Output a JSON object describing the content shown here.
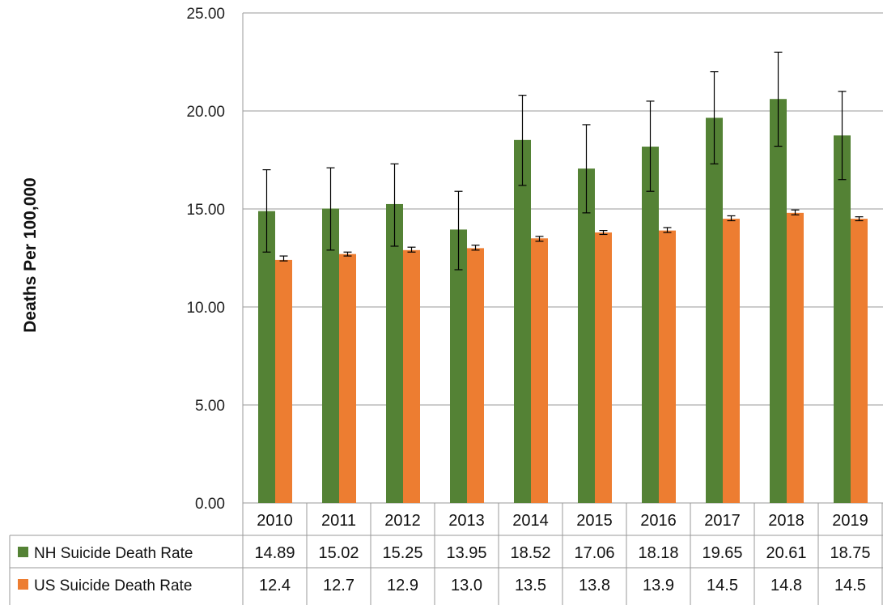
{
  "chart_data": {
    "type": "bar",
    "title": "",
    "xlabel": "",
    "ylabel": "Deaths Per 100,000",
    "ylim": [
      0,
      25
    ],
    "yticks": [
      "0.00",
      "5.00",
      "10.00",
      "15.00",
      "20.00",
      "25.00"
    ],
    "grid": true,
    "legend_placement": "data-table-left",
    "categories": [
      "2010",
      "2011",
      "2012",
      "2013",
      "2014",
      "2015",
      "2016",
      "2017",
      "2018",
      "2019"
    ],
    "series": [
      {
        "name": "NH Suicide Death Rate",
        "color": "#548235",
        "values": [
          14.89,
          15.02,
          15.25,
          13.95,
          18.52,
          17.06,
          18.18,
          19.65,
          20.61,
          18.75
        ],
        "labels": [
          "14.89",
          "15.02",
          "15.25",
          "13.95",
          "18.52",
          "17.06",
          "18.18",
          "19.65",
          "20.61",
          "18.75"
        ],
        "error_low": [
          12.8,
          12.9,
          13.1,
          11.9,
          16.2,
          14.8,
          15.9,
          17.3,
          18.2,
          16.5
        ],
        "error_high": [
          17.0,
          17.1,
          17.3,
          15.9,
          20.8,
          19.3,
          20.5,
          22.0,
          23.0,
          21.0
        ]
      },
      {
        "name": "US Suicide Death Rate",
        "color": "#ED7D31",
        "values": [
          12.4,
          12.7,
          12.9,
          13.0,
          13.5,
          13.8,
          13.9,
          14.5,
          14.8,
          14.5
        ],
        "labels": [
          "12.4",
          "12.7",
          "12.9",
          "13.0",
          "13.5",
          "13.8",
          "13.9",
          "14.5",
          "14.8",
          "14.5"
        ],
        "error_low": [
          12.35,
          12.6,
          12.8,
          12.9,
          13.35,
          13.7,
          13.8,
          14.4,
          14.7,
          14.4
        ],
        "error_high": [
          12.6,
          12.8,
          13.05,
          13.15,
          13.6,
          13.9,
          14.05,
          14.65,
          14.95,
          14.6
        ]
      }
    ]
  }
}
